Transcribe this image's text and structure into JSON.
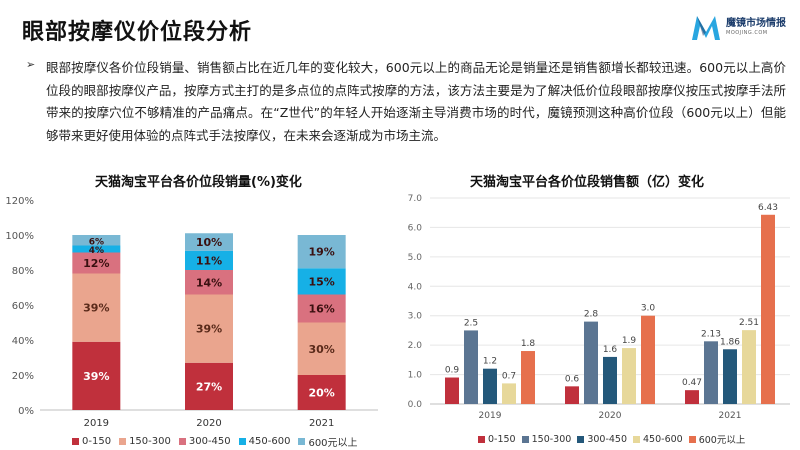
{
  "page": {
    "title": "眼部按摩仪价位段分析",
    "intro": "眼部按摩仪各价位段销量、销售额占比在近几年的变化较大，600元以上的商品无论是销量还是销售额增长都较迅速。600元以上高价位段的眼部按摩仪产品，按摩方式主打的是多点位的点阵式按摩的方法，该方法主要是为了解决低价位段眼部按摩仪按压式按摩手法所带来的按摩穴位不够精准的产品痛点。在“Z世代”的年轻人开始逐渐主导消费市场的时代，魔镜预测这种高价位段（600元以上）但能够带来更好使用体验的点阵式手法按摩仪，在未来会逐渐成为市场主流。",
    "bullet": "➢"
  },
  "logo": {
    "name": "魔镜市场情报",
    "url": "MOOJING.COM",
    "icon": "moojing-m-logo-icon",
    "color": "#29a6e0"
  },
  "chart_data": [
    {
      "type": "bar",
      "stacked": true,
      "title": "天猫淘宝平台各价位段销量(%)变化",
      "categories": [
        "2019",
        "2020",
        "2021"
      ],
      "ylim": [
        0,
        120
      ],
      "yticks": [
        "0%",
        "20%",
        "40%",
        "60%",
        "80%",
        "100%",
        "120%"
      ],
      "ytick_values": [
        0,
        20,
        40,
        60,
        80,
        100,
        120
      ],
      "series": [
        {
          "name": "0-150",
          "color": "#c0303c",
          "values": [
            39,
            27,
            20
          ],
          "labels": [
            "39%",
            "27%",
            "20%"
          ]
        },
        {
          "name": "150-300",
          "color": "#eaa58e",
          "values": [
            39,
            39,
            30
          ],
          "labels": [
            "39%",
            "39%",
            "30%"
          ]
        },
        {
          "name": "300-450",
          "color": "#d9717f",
          "values": [
            12,
            14,
            16
          ],
          "labels": [
            "12%",
            "14%",
            "16%"
          ]
        },
        {
          "name": "450-600",
          "color": "#16b0e6",
          "values": [
            4,
            11,
            15
          ],
          "labels": [
            "4%",
            "11%",
            "15%"
          ]
        },
        {
          "name": "600元以上",
          "color": "#79b8d4",
          "values": [
            6,
            10,
            19
          ],
          "labels": [
            "6%",
            "10%",
            "19%"
          ]
        }
      ],
      "legend": "bottom"
    },
    {
      "type": "bar",
      "stacked": false,
      "title": "天猫淘宝平台各价位段销售额（亿）变化",
      "categories": [
        "2019",
        "2020",
        "2021"
      ],
      "ylim": [
        0,
        7
      ],
      "yticks": [
        "0.0",
        "1.0",
        "2.0",
        "3.0",
        "4.0",
        "5.0",
        "6.0",
        "7.0"
      ],
      "ytick_values": [
        0,
        1,
        2,
        3,
        4,
        5,
        6,
        7
      ],
      "grid": true,
      "series": [
        {
          "name": "0-150",
          "color": "#c0303c",
          "values": [
            0.9,
            0.6,
            0.47
          ],
          "labels": [
            "0.9",
            "0.6",
            "0.47"
          ]
        },
        {
          "name": "150-300",
          "color": "#5b7592",
          "values": [
            2.5,
            2.8,
            2.13
          ],
          "labels": [
            "2.5",
            "2.8",
            "2.13"
          ]
        },
        {
          "name": "300-450",
          "color": "#24587a",
          "values": [
            1.2,
            1.6,
            1.86
          ],
          "labels": [
            "1.2",
            "1.6",
            "1.86"
          ]
        },
        {
          "name": "450-600",
          "color": "#e7d89a",
          "values": [
            0.7,
            1.9,
            2.51
          ],
          "labels": [
            "0.7",
            "1.9",
            "2.51"
          ]
        },
        {
          "name": "600元以上",
          "color": "#e6704d",
          "values": [
            1.8,
            3.0,
            6.43
          ],
          "labels": [
            "1.8",
            "3.0",
            "6.43"
          ]
        }
      ],
      "legend": "bottom"
    }
  ]
}
